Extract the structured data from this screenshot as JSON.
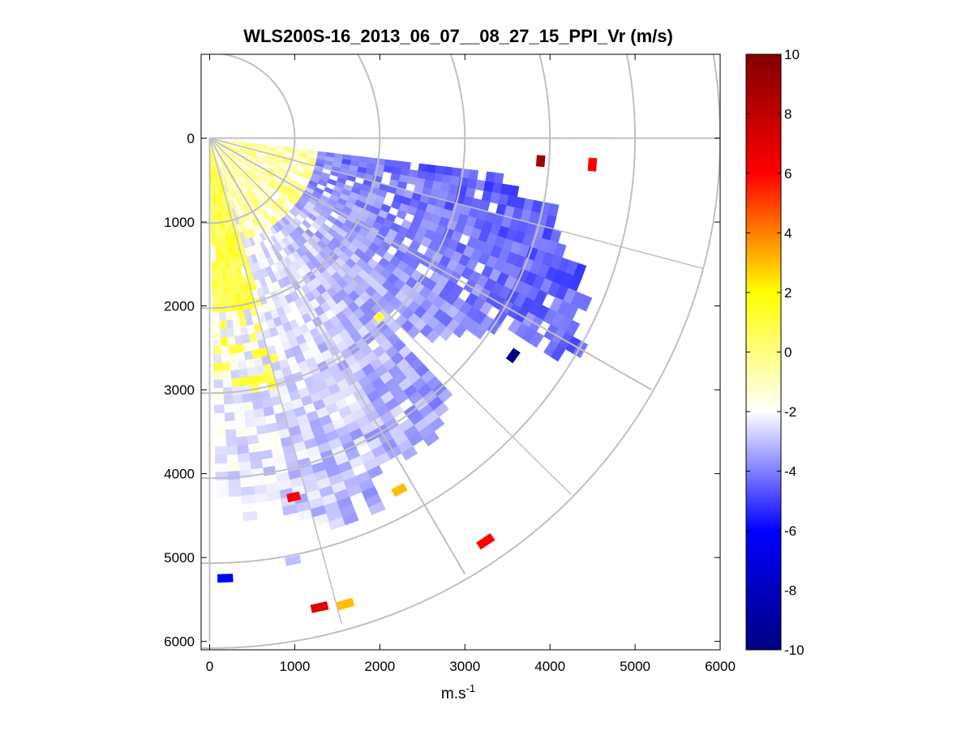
{
  "chart_data": {
    "type": "heatmap",
    "title": "WLS200S-16_2013_06_07__08_27_15_PPI_Vr (m/s)",
    "xlabel": "m.s",
    "xlabel_sup": "-1",
    "ylabel": "",
    "xlim": [
      -100,
      6000
    ],
    "ylim": [
      -1000,
      6100
    ],
    "y_reversed": true,
    "x_ticks": [
      "0",
      "1000",
      "2000",
      "3000",
      "4000",
      "5000",
      "6000"
    ],
    "y_ticks": [
      "0",
      "1000",
      "2000",
      "3000",
      "4000",
      "5000",
      "6000"
    ],
    "polar_grid": {
      "origin": [
        0,
        0
      ],
      "ring_radii": [
        1000,
        2000,
        3000,
        4000,
        5000,
        6000
      ],
      "spoke_angles_deg": [
        0,
        30,
        60,
        90
      ]
    },
    "scan": {
      "azimuth_start_deg": 7,
      "azimuth_end_deg": 88,
      "azimuth_step_deg": 2,
      "range_start": 80,
      "range_step": 100
    },
    "colorbar": {
      "min": -10,
      "max": 10,
      "ticks": [
        "10",
        "8",
        "6",
        "4",
        "2",
        "0",
        "-2",
        "-4",
        "-6",
        "-8",
        "-10"
      ],
      "colors": [
        "#000080",
        "#0000ff",
        "#ffffff",
        "#ffff00",
        "#ff0000",
        "#800000"
      ]
    },
    "outlier_cells": [
      {
        "range": 3850,
        "angle_deg": 3,
        "value": 9
      },
      {
        "range": 4460,
        "angle_deg": 3,
        "value": 6
      },
      {
        "range": 2870,
        "angle_deg": 46,
        "value": 1
      },
      {
        "range": 4360,
        "angle_deg": 35,
        "value": -10
      },
      {
        "range": 4700,
        "angle_deg": 61,
        "value": 3
      },
      {
        "range": 4340,
        "angle_deg": 76,
        "value": 6
      },
      {
        "range": 5750,
        "angle_deg": 55,
        "value": 6
      },
      {
        "range": 5200,
        "angle_deg": 87,
        "value": -6
      },
      {
        "range": 5080,
        "angle_deg": 78,
        "value": -3
      },
      {
        "range": 5730,
        "angle_deg": 73,
        "value": 3
      },
      {
        "range": 5690,
        "angle_deg": 76,
        "value": 7
      }
    ]
  }
}
